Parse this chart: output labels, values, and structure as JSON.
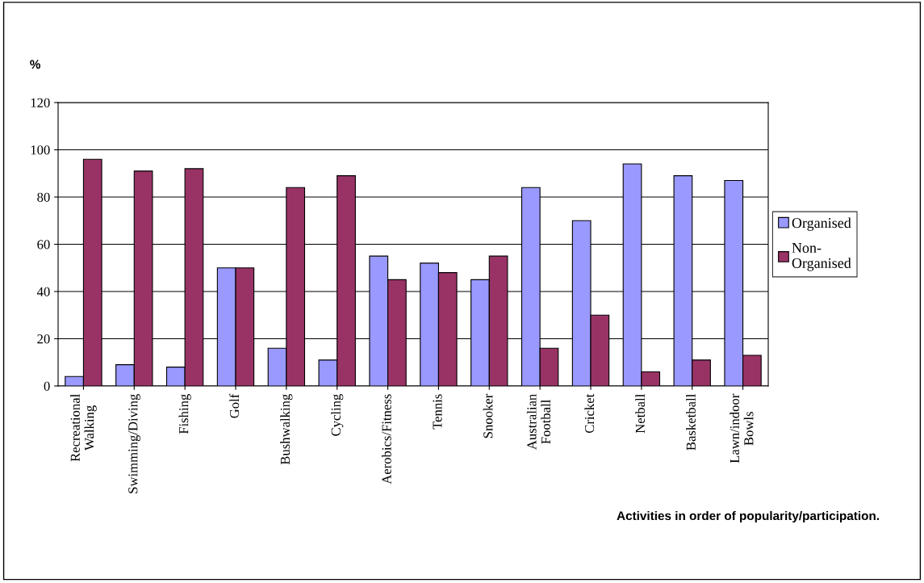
{
  "chart_data": {
    "type": "bar",
    "ylabel": "%",
    "xlabel": "Activities in order of popularity/participation.",
    "categories": [
      "Recreational\nWalking",
      "Swimming/Diving",
      "Fishing",
      "Golf",
      "Bushwalking",
      "Cycling",
      "Aerobics/Fitness",
      "Tennis",
      "Snooker",
      "Australian\nFootball",
      "Cricket",
      "Netball",
      "Basketball",
      "Lawn/indoor\nBowls"
    ],
    "series": [
      {
        "name": "Organised",
        "color": "#9999ff",
        "values": [
          4,
          9,
          8,
          50,
          16,
          11,
          55,
          52,
          45,
          84,
          70,
          94,
          89,
          87
        ]
      },
      {
        "name": "Non-\nOrganised",
        "color": "#993366",
        "values": [
          96,
          91,
          92,
          50,
          84,
          89,
          45,
          48,
          55,
          16,
          30,
          6,
          11,
          13
        ]
      }
    ],
    "ylim": [
      0,
      120
    ],
    "yticks": [
      0,
      20,
      40,
      60,
      80,
      100,
      120
    ],
    "grid": "y",
    "legend": "right"
  }
}
